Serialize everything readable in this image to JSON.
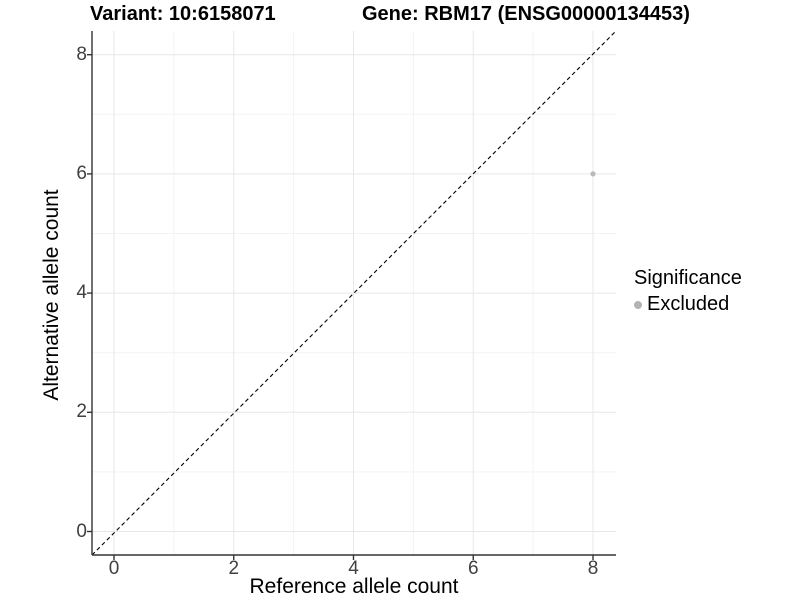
{
  "chart_data": {
    "type": "scatter",
    "title_left": "Variant: 10:6158071",
    "title_right": "Gene: RBM17 (ENSG00000134453)",
    "xlabel": "Reference allele count",
    "ylabel": "Alternative allele count",
    "xlim": [
      -0.4,
      8.4
    ],
    "ylim": [
      -0.4,
      8.4
    ],
    "x_ticks": [
      0,
      2,
      4,
      6,
      8
    ],
    "y_ticks": [
      0,
      2,
      4,
      6,
      8
    ],
    "minor_gridlines": [
      1,
      3,
      5,
      7
    ],
    "grid": "major and minor gridlines on white panel",
    "points": [
      {
        "x": 8,
        "y": 6,
        "series": "Excluded"
      }
    ],
    "reference_line": {
      "type": "identity y=x",
      "style": "dashed",
      "color": "#000000"
    },
    "legend": {
      "title": "Significance",
      "position": "right",
      "entries": [
        {
          "label": "Excluded",
          "color": "#b3b3b3"
        }
      ]
    },
    "colors": {
      "point": "#b9b9b9",
      "grid_major": "#e7e7e7",
      "grid_minor": "#f3f3f3",
      "axis": "#333333",
      "tick_label": "#404040"
    }
  }
}
